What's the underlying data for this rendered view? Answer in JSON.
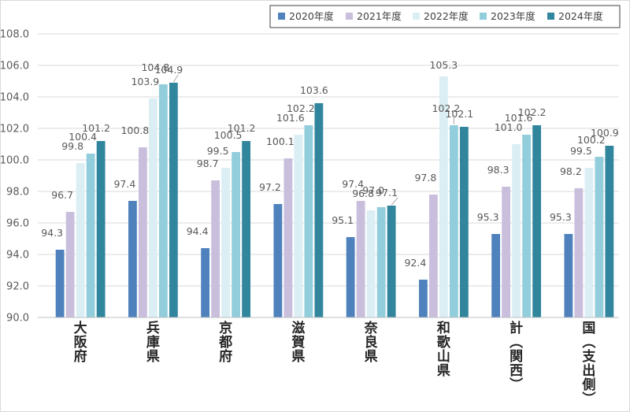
{
  "chart_data": {
    "type": "bar",
    "categories": [
      "大阪府",
      "兵庫県",
      "京都府",
      "滋賀県",
      "奈良県",
      "和歌山県",
      "計（関西）",
      "国（支出側）"
    ],
    "series": [
      {
        "name": "2020年度",
        "color": "#4f81bd",
        "values": [
          94.3,
          97.4,
          94.4,
          97.2,
          95.1,
          92.4,
          95.3,
          95.3
        ]
      },
      {
        "name": "2021年度",
        "color": "#c9bfdc",
        "values": [
          96.7,
          100.8,
          98.7,
          100.1,
          97.4,
          97.8,
          98.3,
          98.2
        ]
      },
      {
        "name": "2022年度",
        "color": "#dbeef4",
        "values": [
          99.8,
          103.9,
          99.5,
          101.6,
          96.8,
          105.3,
          101.0,
          99.5
        ]
      },
      {
        "name": "2023年度",
        "color": "#92cddc",
        "values": [
          100.4,
          104.8,
          100.5,
          102.2,
          97.0,
          102.2,
          101.6,
          100.2
        ]
      },
      {
        "name": "2024年度",
        "color": "#31859c",
        "values": [
          101.2,
          104.9,
          101.2,
          103.6,
          97.1,
          102.1,
          102.2,
          100.9
        ]
      }
    ],
    "ylim": [
      90.0,
      108.0
    ],
    "yticks": [
      "90.0",
      "92.0",
      "94.0",
      "96.0",
      "98.0",
      "100.0",
      "102.0",
      "104.0",
      "106.0",
      "108.0"
    ],
    "grid": true,
    "legend_position": "top-right"
  }
}
